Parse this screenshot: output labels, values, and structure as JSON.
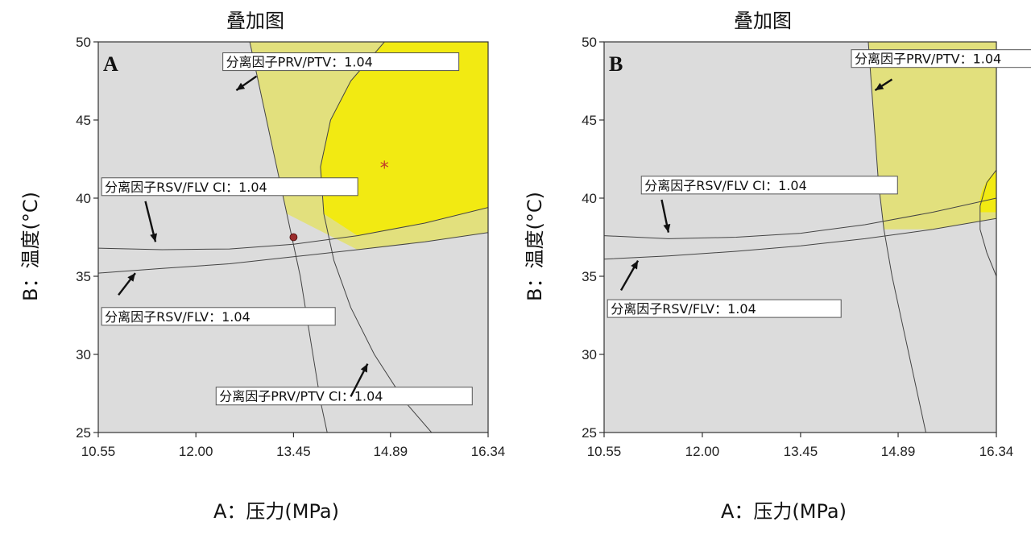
{
  "chart_data": [
    {
      "type": "contour",
      "panel": "A",
      "title": "叠加图",
      "xlabel": "A：压力(MPa)",
      "ylabel": "B：温度(°C)",
      "xlim": [
        10.55,
        16.34
      ],
      "ylim": [
        25,
        50
      ],
      "xticks": [
        "10.55",
        "12.00",
        "13.45",
        "14.89",
        "16.34"
      ],
      "xtick_values": [
        10.55,
        12.0,
        13.45,
        14.89,
        16.34
      ],
      "yticks": [
        "25",
        "30",
        "35",
        "40",
        "45",
        "50"
      ],
      "ytick_values": [
        25,
        30,
        35,
        40,
        45,
        50
      ],
      "annotations": [
        {
          "text": "分离因子PRV/PTV：1.04",
          "box_at": [
            12.4,
            49.3
          ],
          "arrow_from": [
            12.9,
            47.8
          ],
          "arrow_to": [
            12.6,
            46.9
          ]
        },
        {
          "text": "分离因子RSV/FLV CI：1.04",
          "box_at": [
            10.6,
            41.3
          ],
          "arrow_from": [
            11.25,
            39.8
          ],
          "arrow_to": [
            11.4,
            37.2
          ]
        },
        {
          "text": "分离因子RSV/FLV：1.04",
          "box_at": [
            10.6,
            33.0
          ],
          "arrow_from": [
            10.85,
            33.8
          ],
          "arrow_to": [
            11.1,
            35.2
          ]
        },
        {
          "text": "分离因子PRV/PTV CI：1.04",
          "box_at": [
            12.3,
            27.9
          ],
          "arrow_from": [
            14.3,
            27.3
          ],
          "arrow_to": [
            14.55,
            29.4
          ]
        }
      ],
      "regions": {
        "feasible_outer_color": "#e2e07d",
        "feasible_inner_color": "#f2ea12",
        "infeasible_color": "#dcdcdc"
      },
      "optimum_marker": {
        "symbol": "*",
        "x": 14.8,
        "y": 42.0,
        "color": "#c0392b"
      },
      "design_point": {
        "x": 13.45,
        "y": 37.5,
        "color": "#9b2d2d"
      },
      "curves": {
        "prv_ptv": [
          [
            12.8,
            50
          ],
          [
            12.95,
            47
          ],
          [
            13.15,
            43
          ],
          [
            13.35,
            39
          ],
          [
            13.55,
            35
          ],
          [
            13.7,
            31
          ],
          [
            13.85,
            27
          ],
          [
            13.95,
            25
          ]
        ],
        "prv_ptv_ci": [
          [
            14.8,
            50
          ],
          [
            14.3,
            47.5
          ],
          [
            14.0,
            45
          ],
          [
            13.85,
            42
          ],
          [
            13.9,
            39
          ],
          [
            14.05,
            36
          ],
          [
            14.3,
            33
          ],
          [
            14.65,
            30
          ],
          [
            15.1,
            27
          ],
          [
            15.5,
            25
          ]
        ],
        "rsv_flv_ci": [
          [
            10.55,
            36.8
          ],
          [
            11.5,
            36.7
          ],
          [
            12.5,
            36.75
          ],
          [
            13.45,
            37.05
          ],
          [
            14.4,
            37.6
          ],
          [
            15.4,
            38.4
          ],
          [
            16.34,
            39.4
          ]
        ],
        "rsv_flv": [
          [
            10.55,
            35.2
          ],
          [
            11.5,
            35.5
          ],
          [
            12.5,
            35.8
          ],
          [
            13.45,
            36.25
          ],
          [
            14.4,
            36.7
          ],
          [
            15.4,
            37.2
          ],
          [
            16.34,
            37.8
          ]
        ]
      }
    },
    {
      "type": "contour",
      "panel": "B",
      "title": "叠加图",
      "xlabel": "A：压力(MPa)",
      "ylabel": "B：温度(°C)",
      "xlim": [
        10.55,
        16.34
      ],
      "ylim": [
        25,
        50
      ],
      "xticks": [
        "10.55",
        "12.00",
        "13.45",
        "14.89",
        "16.34"
      ],
      "xtick_values": [
        10.55,
        12.0,
        13.45,
        14.89,
        16.34
      ],
      "yticks": [
        "25",
        "30",
        "35",
        "40",
        "45",
        "50"
      ],
      "ytick_values": [
        25,
        30,
        35,
        40,
        45,
        50
      ],
      "annotations": [
        {
          "text": "分离因子PRV/PTV：1.04",
          "box_at": [
            14.2,
            49.5
          ],
          "arrow_from": [
            14.8,
            47.6
          ],
          "arrow_to": [
            14.55,
            46.9
          ]
        },
        {
          "text": "分离因子RSV/FLV CI：1.04",
          "box_at": [
            11.1,
            41.4
          ],
          "arrow_from": [
            11.4,
            39.9
          ],
          "arrow_to": [
            11.5,
            37.8
          ]
        },
        {
          "text": "分离因子RSV/FLV：1.04",
          "box_at": [
            10.6,
            33.5
          ],
          "arrow_from": [
            10.8,
            34.1
          ],
          "arrow_to": [
            11.05,
            36.0
          ]
        }
      ],
      "regions": {
        "feasible_outer_color": "#e2e07d",
        "feasible_inner_color": "#f2ea12",
        "infeasible_color": "#dcdcdc"
      },
      "curves": {
        "prv_ptv": [
          [
            14.45,
            50
          ],
          [
            14.5,
            47
          ],
          [
            14.55,
            44
          ],
          [
            14.6,
            41
          ],
          [
            14.68,
            38
          ],
          [
            14.8,
            35
          ],
          [
            14.95,
            32
          ],
          [
            15.1,
            29
          ],
          [
            15.25,
            26
          ],
          [
            15.3,
            25
          ]
        ],
        "prv_ptv_ci": [
          [
            16.34,
            41.8
          ],
          [
            16.2,
            41.0
          ],
          [
            16.1,
            39.5
          ],
          [
            16.1,
            38.0
          ],
          [
            16.2,
            36.5
          ],
          [
            16.34,
            35.0
          ]
        ],
        "rsv_flv_ci": [
          [
            10.55,
            37.6
          ],
          [
            11.5,
            37.4
          ],
          [
            12.5,
            37.5
          ],
          [
            13.45,
            37.75
          ],
          [
            14.4,
            38.3
          ],
          [
            15.4,
            39.1
          ],
          [
            16.34,
            40.0
          ]
        ],
        "rsv_flv": [
          [
            10.55,
            36.1
          ],
          [
            11.5,
            36.3
          ],
          [
            12.5,
            36.6
          ],
          [
            13.45,
            36.95
          ],
          [
            14.4,
            37.4
          ],
          [
            15.4,
            38.0
          ],
          [
            16.34,
            38.7
          ]
        ]
      }
    }
  ]
}
